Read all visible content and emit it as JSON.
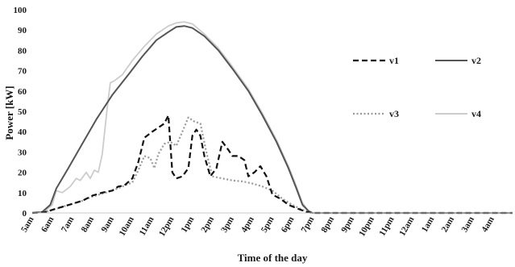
{
  "chart_data": {
    "type": "line",
    "title": "",
    "xlabel": "Time of the day",
    "ylabel": "Power [kW]",
    "ylim": [
      0,
      100
    ],
    "yticks": [
      0,
      10,
      20,
      30,
      40,
      50,
      60,
      70,
      80,
      90,
      100
    ],
    "grid": false,
    "legend": "right",
    "categories": [
      "5am",
      "6am",
      "7am",
      "8am",
      "9am",
      "10am",
      "11am",
      "12pm",
      "1pm",
      "2pm",
      "3pm",
      "4pm",
      "5pm",
      "6pm",
      "7pm",
      "8pm",
      "9pm",
      "10pm",
      "11pm",
      "12am",
      "1am",
      "2am",
      "3am",
      "4am"
    ],
    "series": [
      {
        "name": "v1",
        "color": "#111111",
        "style": "dashed",
        "points": [
          [
            5,
            0
          ],
          [
            5.6,
            0.3
          ],
          [
            6,
            1.5
          ],
          [
            6.5,
            3
          ],
          [
            7,
            4.5
          ],
          [
            7.5,
            6
          ],
          [
            8,
            8.5
          ],
          [
            8.5,
            10
          ],
          [
            9,
            11
          ],
          [
            9.3,
            13
          ],
          [
            9.6,
            13.5
          ],
          [
            10,
            17
          ],
          [
            10.3,
            25
          ],
          [
            10.6,
            37
          ],
          [
            11,
            40
          ],
          [
            11.3,
            42
          ],
          [
            11.6,
            44
          ],
          [
            11.8,
            48
          ],
          [
            12,
            20
          ],
          [
            12.2,
            17
          ],
          [
            12.5,
            18
          ],
          [
            12.8,
            22
          ],
          [
            13,
            38
          ],
          [
            13.2,
            41
          ],
          [
            13.4,
            38
          ],
          [
            13.6,
            28
          ],
          [
            13.9,
            18
          ],
          [
            14.2,
            22
          ],
          [
            14.5,
            35
          ],
          [
            14.8,
            31
          ],
          [
            15,
            28
          ],
          [
            15.3,
            28
          ],
          [
            15.6,
            26
          ],
          [
            15.8,
            18
          ],
          [
            16.1,
            20
          ],
          [
            16.4,
            23
          ],
          [
            16.7,
            18
          ],
          [
            17,
            9
          ],
          [
            17.4,
            7
          ],
          [
            17.8,
            4
          ],
          [
            18.3,
            2
          ],
          [
            18.7,
            0.5
          ],
          [
            19,
            0
          ],
          [
            20,
            0
          ],
          [
            23,
            0
          ],
          [
            26,
            0
          ],
          [
            29,
            0
          ]
        ]
      },
      {
        "name": "v2",
        "color": "#555555",
        "style": "solid",
        "points": [
          [
            5,
            0
          ],
          [
            5.5,
            0.5
          ],
          [
            5.9,
            4
          ],
          [
            6.2,
            12
          ],
          [
            6.8,
            22
          ],
          [
            7.5,
            34
          ],
          [
            8.2,
            46
          ],
          [
            9,
            58
          ],
          [
            9.8,
            68
          ],
          [
            10.5,
            77
          ],
          [
            11.2,
            85
          ],
          [
            11.8,
            89
          ],
          [
            12.2,
            91.5
          ],
          [
            12.6,
            92
          ],
          [
            13,
            91
          ],
          [
            13.6,
            87
          ],
          [
            14.3,
            80
          ],
          [
            15,
            71
          ],
          [
            15.8,
            60
          ],
          [
            16.5,
            48
          ],
          [
            17.2,
            35
          ],
          [
            17.8,
            22
          ],
          [
            18.2,
            12
          ],
          [
            18.5,
            4
          ],
          [
            18.8,
            1
          ],
          [
            19,
            0
          ],
          [
            20,
            0
          ],
          [
            23,
            0
          ],
          [
            26,
            0
          ],
          [
            29,
            0
          ]
        ]
      },
      {
        "name": "v3",
        "color": "#9a9a9a",
        "style": "dotted",
        "points": [
          [
            5,
            0
          ],
          [
            5.6,
            0.3
          ],
          [
            6,
            1.5
          ],
          [
            6.5,
            3
          ],
          [
            7,
            4.5
          ],
          [
            7.5,
            6
          ],
          [
            8,
            8
          ],
          [
            8.5,
            9.5
          ],
          [
            9,
            11
          ],
          [
            9.5,
            13
          ],
          [
            10,
            15
          ],
          [
            10.3,
            21
          ],
          [
            10.6,
            28
          ],
          [
            10.9,
            27
          ],
          [
            11.1,
            22
          ],
          [
            11.3,
            29
          ],
          [
            11.6,
            34
          ],
          [
            11.9,
            35
          ],
          [
            12.2,
            33
          ],
          [
            12.5,
            40
          ],
          [
            12.8,
            47
          ],
          [
            13.1,
            45
          ],
          [
            13.4,
            44
          ],
          [
            13.7,
            30
          ],
          [
            14,
            18
          ],
          [
            14.5,
            17
          ],
          [
            15,
            16
          ],
          [
            15.5,
            15.5
          ],
          [
            16,
            14.5
          ],
          [
            16.5,
            13
          ],
          [
            17,
            11
          ],
          [
            17.5,
            7
          ],
          [
            18,
            4
          ],
          [
            18.5,
            1.5
          ],
          [
            19,
            0
          ],
          [
            20,
            0
          ],
          [
            23,
            0
          ],
          [
            26,
            0
          ],
          [
            29,
            0
          ]
        ]
      },
      {
        "name": "v4",
        "color": "#cccccc",
        "style": "solid",
        "points": [
          [
            5,
            0
          ],
          [
            5.6,
            0.5
          ],
          [
            6,
            4
          ],
          [
            6.2,
            11
          ],
          [
            6.5,
            10
          ],
          [
            6.9,
            13
          ],
          [
            7.2,
            17
          ],
          [
            7.4,
            16
          ],
          [
            7.7,
            20
          ],
          [
            7.9,
            17
          ],
          [
            8.1,
            21
          ],
          [
            8.3,
            20
          ],
          [
            8.5,
            29
          ],
          [
            8.75,
            52
          ],
          [
            8.9,
            64
          ],
          [
            9.1,
            65
          ],
          [
            9.5,
            68
          ],
          [
            10,
            75
          ],
          [
            10.6,
            82
          ],
          [
            11.2,
            88
          ],
          [
            11.8,
            92
          ],
          [
            12.2,
            93.5
          ],
          [
            12.6,
            94
          ],
          [
            13,
            93
          ],
          [
            13.6,
            88
          ],
          [
            14.3,
            81
          ],
          [
            15,
            72
          ],
          [
            15.8,
            61
          ],
          [
            16.5,
            49
          ],
          [
            17.2,
            36
          ],
          [
            17.8,
            23
          ],
          [
            18.2,
            13
          ],
          [
            18.5,
            5
          ],
          [
            18.8,
            1
          ],
          [
            19,
            0
          ],
          [
            20,
            0
          ],
          [
            23,
            0
          ],
          [
            26,
            0
          ],
          [
            29,
            0
          ]
        ]
      }
    ]
  }
}
